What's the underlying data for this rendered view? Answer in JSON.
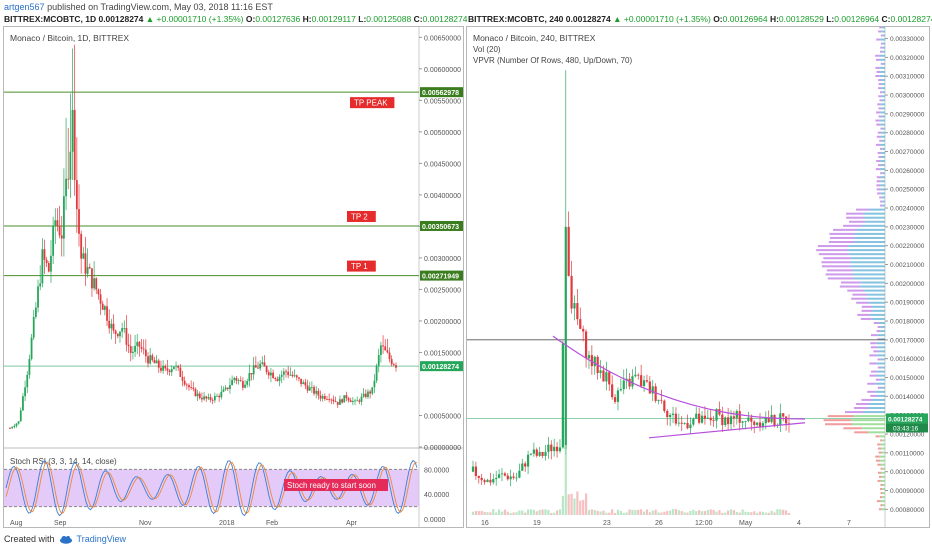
{
  "header": {
    "user": "artgen567",
    "published_text": "published on TradingView.com, May 03, 2018 11:16 EST"
  },
  "left": {
    "ohlc": {
      "symbol": "BITTREX:MCOBTC, 1D",
      "last": "0.00128274",
      "change": "▲ +0.00001710 (+1.35%)",
      "o_label": "O:",
      "o": "0.00127636",
      "h_label": "H:",
      "h": "0.00129117",
      "l_label": "L:",
      "l": "0.00125088",
      "c_label": "C:",
      "c": "0.00128274"
    },
    "legend": "Monaco / Bitcoin, 1D, BITTREX",
    "stoch_legend": "Stoch RSI (3, 3, 14, 14, close)"
  },
  "right": {
    "ohlc": {
      "symbol": "BITTREX:MCOBTC, 240",
      "last": "0.00128274",
      "change": "▲ +0.00001710 (+1.35%)",
      "o_label": "O:",
      "o": "0.00126964",
      "h_label": "H:",
      "h": "0.00128529",
      "l_label": "L:",
      "l": "0.00126964",
      "c_label": "C:",
      "c": "0.00128274"
    },
    "legend": "Monaco / Bitcoin, 240, BITTREX",
    "legend2": "Vol (20)",
    "legend3": "VPVR (Number Of Rows, 480, Up/Down, 70)"
  },
  "footer": {
    "created_with": "Created with",
    "brand": "TradingView"
  },
  "colors": {
    "up": "#26a65b",
    "down": "#e0393e",
    "hline": "#4a8c2a",
    "stoch_fill": "#d9b8f5",
    "trend": "#b84fdb",
    "vpvr_blue": "#6fb7d9",
    "vpvr_purple": "#c686e8"
  },
  "chart_data": [
    {
      "type": "candlestick",
      "title": "Monaco / Bitcoin, 1D, BITTREX",
      "x_ticks": [
        "Aug",
        "Sep",
        "Nov",
        "2018",
        "Feb",
        "Apr"
      ],
      "y_ticks": [
        "0.00650000",
        "0.00600000",
        "0.00550000",
        "0.00500000",
        "0.00450000",
        "0.00400000",
        "0.00350000",
        "0.00300000",
        "0.00250000",
        "0.00200000",
        "0.00150000",
        "0.00050000",
        "0.00000000"
      ],
      "ylim": [
        0,
        0.0066
      ],
      "close_path": [
        [
          0,
          0.0003
        ],
        [
          4,
          0.0004
        ],
        [
          8,
          0.0012
        ],
        [
          12,
          0.0022
        ],
        [
          15,
          0.003
        ],
        [
          18,
          0.0028
        ],
        [
          21,
          0.0036
        ],
        [
          24,
          0.0034
        ],
        [
          27,
          0.0045
        ],
        [
          29,
          0.0052
        ],
        [
          31,
          0.0038
        ],
        [
          33,
          0.003
        ],
        [
          36,
          0.0028
        ],
        [
          40,
          0.0025
        ],
        [
          44,
          0.0022
        ],
        [
          48,
          0.0018
        ],
        [
          52,
          0.0019
        ],
        [
          56,
          0.0015
        ],
        [
          60,
          0.0016
        ],
        [
          64,
          0.0014
        ],
        [
          68,
          0.0013
        ],
        [
          72,
          0.0012
        ],
        [
          76,
          0.0013
        ],
        [
          80,
          0.0011
        ],
        [
          84,
          0.0009
        ],
        [
          88,
          0.0008
        ],
        [
          92,
          0.00075
        ],
        [
          96,
          0.0008
        ],
        [
          100,
          0.0009
        ],
        [
          104,
          0.0011
        ],
        [
          108,
          0.001
        ],
        [
          112,
          0.0012
        ],
        [
          116,
          0.0013
        ],
        [
          120,
          0.0012
        ],
        [
          124,
          0.0011
        ],
        [
          128,
          0.0012
        ],
        [
          132,
          0.0011
        ],
        [
          136,
          0.001
        ],
        [
          140,
          0.0009
        ],
        [
          144,
          0.0008
        ],
        [
          148,
          0.0008
        ],
        [
          152,
          0.0007
        ],
        [
          156,
          0.0008
        ],
        [
          160,
          0.0007
        ],
        [
          164,
          0.0008
        ],
        [
          168,
          0.0009
        ],
        [
          172,
          0.0016
        ],
        [
          176,
          0.0014
        ],
        [
          180,
          0.00128
        ]
      ],
      "horizontal_levels": [
        {
          "value": 0.00562978,
          "label": "0.00562978",
          "note": "TP PEAK"
        },
        {
          "value": 0.00350673,
          "label": "0.00350673",
          "note": "TP 2"
        },
        {
          "value": 0.00271949,
          "label": "0.00271949",
          "note": "TP 1"
        },
        {
          "value": 0.00128274,
          "label": "0.00128274"
        }
      ],
      "stoch_rsi": {
        "y_ticks": [
          "80.0000",
          "40.0000",
          "0.0000"
        ],
        "ylim": [
          0,
          100
        ],
        "upper": 80,
        "lower": 20,
        "annotation": "Stoch ready to start soon"
      }
    },
    {
      "type": "candlestick",
      "title": "Monaco / Bitcoin, 240, BITTREX",
      "x_ticks": [
        "16",
        "19",
        "23",
        "26",
        "12:00",
        "May",
        "4",
        "7"
      ],
      "y_ticks": [
        "0.00330000",
        "0.00320000",
        "0.00310000",
        "0.00300000",
        "0.00290000",
        "0.00280000",
        "0.00270000",
        "0.00260000",
        "0.00250000",
        "0.00240000",
        "0.00230000",
        "0.00220000",
        "0.00210000",
        "0.00200000",
        "0.00190000",
        "0.00180000",
        "0.00170000",
        "0.00160000",
        "0.00150000",
        "0.00140000",
        "0.00130000",
        "0.00120000",
        "0.00110000",
        "0.00100000",
        "0.00090000",
        "0.00080000"
      ],
      "ylim": [
        0.00077,
        0.00334
      ],
      "close_path": [
        [
          0,
          0.001
        ],
        [
          5,
          0.00095
        ],
        [
          10,
          0.00098
        ],
        [
          15,
          0.00097
        ],
        [
          18,
          0.00105
        ],
        [
          20,
          0.0011
        ],
        [
          23,
          0.00108
        ],
        [
          26,
          0.00112
        ],
        [
          30,
          0.00115
        ],
        [
          32,
          0.0023
        ],
        [
          34,
          0.0019
        ],
        [
          36,
          0.0018
        ],
        [
          38,
          0.0017
        ],
        [
          40,
          0.0016
        ],
        [
          43,
          0.00155
        ],
        [
          46,
          0.0015
        ],
        [
          49,
          0.0014
        ],
        [
          52,
          0.00145
        ],
        [
          56,
          0.0015
        ],
        [
          60,
          0.00145
        ],
        [
          64,
          0.0014
        ],
        [
          68,
          0.0013
        ],
        [
          72,
          0.00125
        ],
        [
          76,
          0.00128
        ],
        [
          80,
          0.00126
        ],
        [
          84,
          0.0013
        ],
        [
          88,
          0.00127
        ],
        [
          92,
          0.00129
        ],
        [
          96,
          0.00126
        ],
        [
          100,
          0.00128
        ],
        [
          104,
          0.00127
        ],
        [
          108,
          0.00128
        ]
      ],
      "horizontal_levels": [
        {
          "value": 0.0017
        },
        {
          "value": 0.00128274,
          "label": "0.00128274",
          "countdown": "03:43:16"
        }
      ]
    }
  ]
}
